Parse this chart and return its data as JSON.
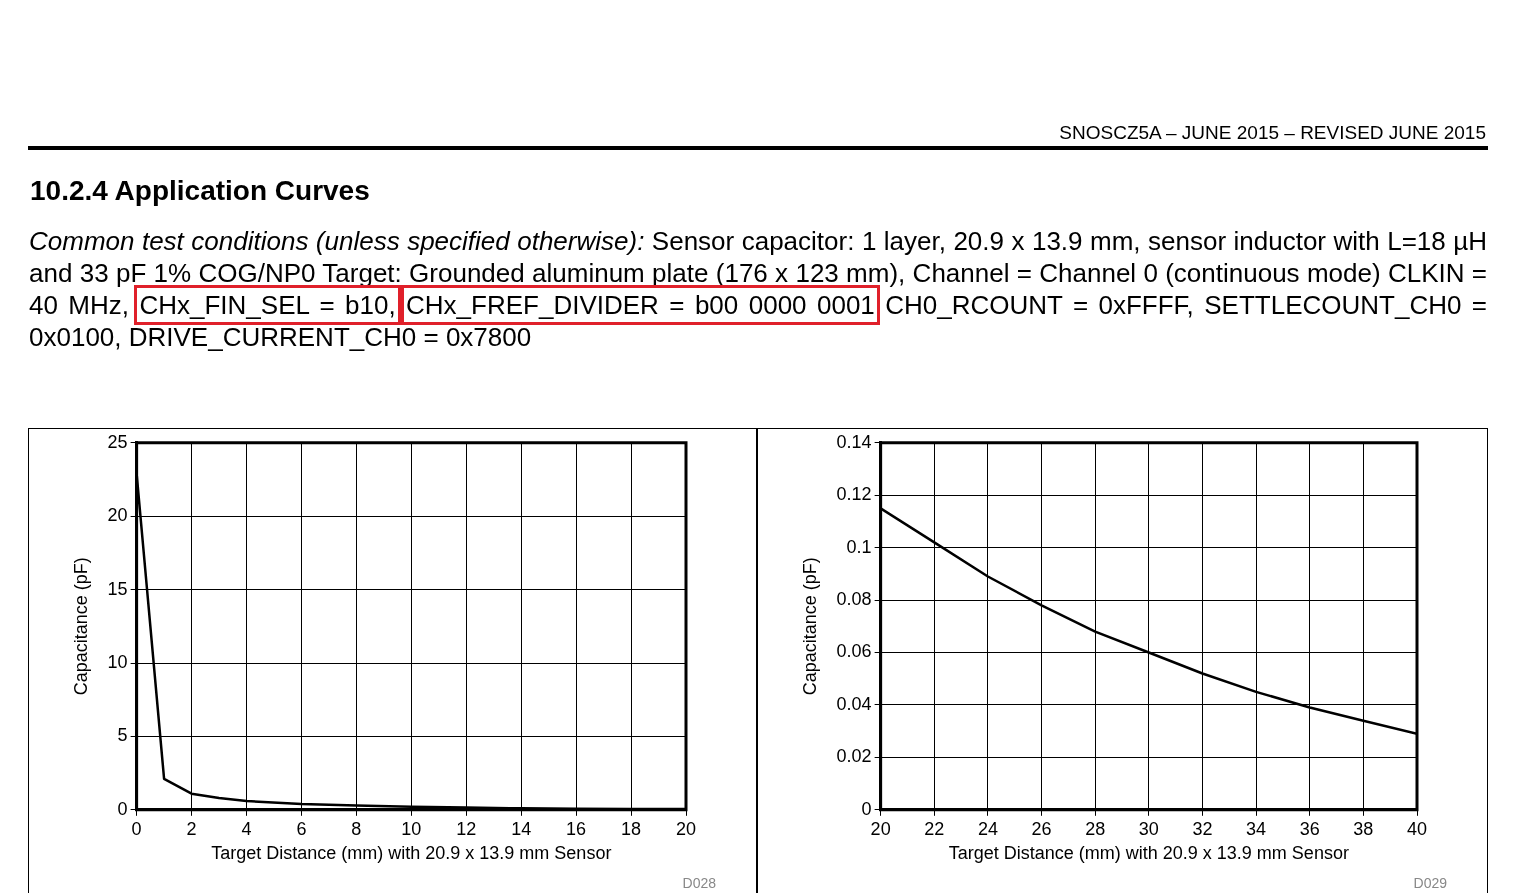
{
  "chart_data": [
    {
      "type": "line",
      "title": "10.2.4 Application Curves",
      "annotations": [
        "SNOSCZ5A – JUNE 2015 – REVISED JUNE 2015",
        "Common test conditions (unless specified otherwise):",
        "Sensor capacitor: 1 layer, 20.9 x 13.9 mm, sensor inductor with L=18 µH and 33 pF 1% COG/NP0 Target: Grounded aluminum plate (176 x 123 mm), Channel = Channel 0 (continuous mode) CLKIN = 40 MHz,",
        "CHx_FIN_SEL = b10,",
        "CHx_FREF_DIVIDER = b00 0000 0001",
        "CH0_RCOUNT = 0xFFFF, SETTLECOUNT_CH0 = 0x0100, DRIVE_CURRENT_CH0 = 0x7800",
        "D028"
      ],
      "xlabel": "Target Distance (mm) with 20.9 x 13.9 mm Sensor",
      "ylabel": "Capacitance (pF)",
      "x": [
        0,
        1,
        2,
        3,
        4,
        6,
        8,
        10,
        12,
        14,
        16,
        18,
        20
      ],
      "series": [
        {
          "color": "#000000",
          "values": [
            22.9,
            2.1,
            1.1,
            0.8,
            0.6,
            0.4,
            0.3,
            0.2,
            0.15,
            0.1,
            0.08,
            0.05,
            0.05
          ]
        }
      ],
      "xlim": [
        0,
        20
      ],
      "xticks": [
        0,
        2,
        4,
        6,
        8,
        10,
        12,
        14,
        16,
        18,
        20
      ],
      "ylim": [
        0,
        25
      ],
      "yticks": [
        0,
        5,
        10,
        15,
        20,
        25
      ],
      "grid": true
    },
    {
      "type": "line",
      "annotations": [
        "D029"
      ],
      "xlabel": "Target Distance (mm) with 20.9 x 13.9 mm Sensor",
      "ylabel": "Capacitance (pF)",
      "x": [
        20,
        22,
        24,
        26,
        28,
        30,
        32,
        34,
        36,
        38,
        40
      ],
      "series": [
        {
          "color": "#000000",
          "values": [
            0.115,
            0.102,
            0.089,
            0.078,
            0.068,
            0.06,
            0.052,
            0.045,
            0.039,
            0.034,
            0.029
          ]
        }
      ],
      "xlim": [
        20,
        40
      ],
      "xticks": [
        20,
        22,
        24,
        26,
        28,
        30,
        32,
        34,
        36,
        38,
        40
      ],
      "ylim": [
        0,
        0.14
      ],
      "yticks": [
        0,
        0.02,
        0.04,
        0.06,
        0.08,
        0.1,
        0.12,
        0.14
      ],
      "grid": true
    }
  ]
}
